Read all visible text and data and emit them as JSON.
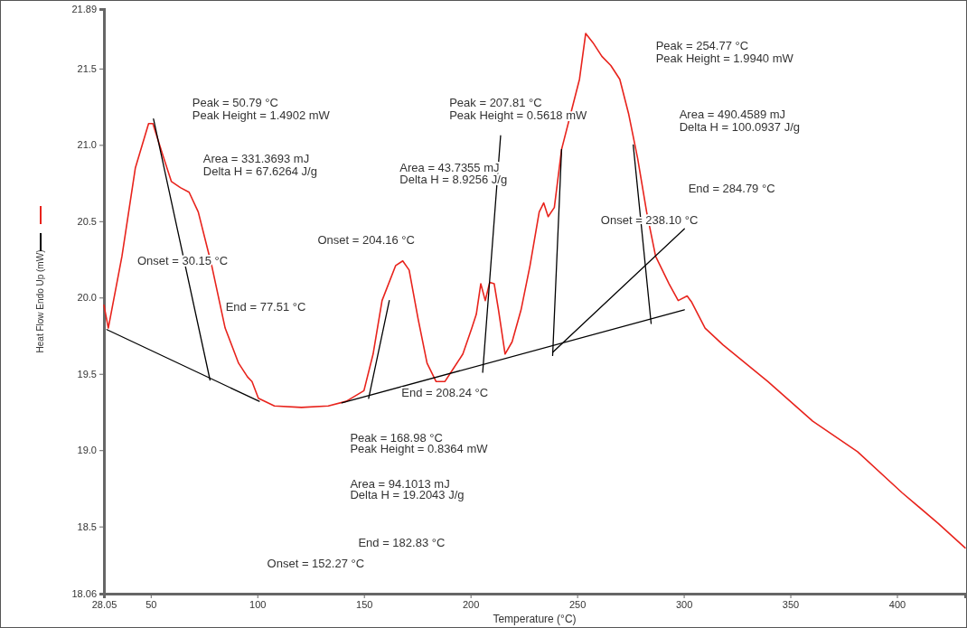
{
  "chart_data": {
    "type": "line",
    "xlabel": "Temperature (°C)",
    "ylabel": "Heat Flow Endo Up (mW)",
    "xlim": [
      28.05,
      432
    ],
    "xticks": [
      28.05,
      50,
      100,
      150,
      200,
      250,
      300,
      350,
      400
    ],
    "ylim": [
      18.06,
      21.89
    ],
    "yticks": [
      18.06,
      18.5,
      {
        "value": 19,
        "label": "19.0"
      },
      19.5,
      {
        "value": 20,
        "label": "20.0"
      },
      20.5,
      {
        "value": 21,
        "label": "21.0"
      },
      21.5,
      21.89
    ],
    "series": [
      {
        "color": "#e8231c",
        "x": [
          28.05,
          30.1,
          36.5,
          42.8,
          49,
          51,
          55.5,
          59.7,
          63.9,
          68,
          72.3,
          78.6,
          84.9,
          91.2,
          95.4,
          97.5,
          100.5,
          108,
          120.7,
          133.3,
          141.7,
          150,
          154.3,
          158.5,
          164.9,
          168.2,
          171.2,
          175.4,
          179.6,
          183.8,
          188,
          192.2,
          196.4,
          200.6,
          202.7,
          204.8,
          206.9,
          209,
          211.1,
          213.1,
          216.2,
          219.5,
          223.7,
          227.9,
          232.2,
          234.3,
          236.4,
          239.3,
          242.7,
          246.9,
          251.1,
          254,
          257.4,
          261.6,
          265.8,
          270,
          274.2,
          278.4,
          282.6,
          286.8,
          293.1,
          297.4,
          301.6,
          303.7,
          310,
          318.4,
          339.4,
          360.5,
          381.5,
          402.5,
          419.4,
          432
        ],
        "values": [
          19.95,
          19.8,
          20.27,
          20.85,
          21.14,
          21.14,
          20.94,
          20.76,
          20.72,
          20.69,
          20.56,
          20.21,
          19.8,
          19.57,
          19.48,
          19.45,
          19.34,
          19.29,
          19.28,
          19.29,
          19.32,
          19.39,
          19.63,
          19.98,
          20.21,
          20.24,
          20.18,
          19.86,
          19.57,
          19.45,
          19.45,
          19.54,
          19.63,
          19.8,
          19.89,
          20.09,
          19.98,
          20.1,
          20.09,
          19.92,
          19.63,
          19.71,
          19.92,
          20.21,
          20.56,
          20.62,
          20.53,
          20.59,
          20.97,
          21.2,
          21.43,
          21.73,
          21.67,
          21.58,
          21.52,
          21.43,
          21.2,
          20.91,
          20.56,
          20.27,
          20.09,
          19.98,
          20.01,
          19.97,
          19.8,
          19.69,
          19.45,
          19.19,
          18.99,
          18.72,
          18.52,
          18.36
        ]
      },
      {
        "color": "#000000",
        "x": [
          29.4,
          100.9
        ],
        "values": [
          19.79,
          19.32
        ]
      },
      {
        "color": "#000000",
        "x": [
          51.3,
          77.8
        ],
        "values": [
          21.17,
          19.46
        ]
      },
      {
        "color": "#000000",
        "x": [
          139.6,
          300.3
        ],
        "values": [
          19.31,
          19.92
        ]
      },
      {
        "color": "#000000",
        "x": [
          152.2,
          161.9
        ],
        "values": [
          19.34,
          19.98
        ]
      },
      {
        "color": "#000000",
        "x": [
          205.7,
          214.1
        ],
        "values": [
          19.51,
          21.06
        ]
      },
      {
        "color": "#000000",
        "x": [
          238.5,
          242.7
        ],
        "values": [
          19.62,
          20.97
        ]
      },
      {
        "color": "#000000",
        "x": [
          238.5,
          300.3
        ],
        "values": [
          19.64,
          20.45
        ]
      },
      {
        "color": "#000000",
        "x": [
          276.3,
          284.7
        ],
        "values": [
          21.0,
          19.83
        ]
      }
    ],
    "annotations": [
      "Peak = 50.79 °C",
      "Peak Height = 1.4902 mW",
      "Area = 331.3693 mJ",
      "Delta H = 67.6264 J/g",
      "Onset = 30.15 °C",
      "End = 77.51 °C",
      "Onset = 204.16 °C",
      "Peak = 207.81 °C",
      "Peak Height = 0.5618 mW",
      "Area = 43.7355 mJ",
      "Delta H = 8.9256 J/g",
      "End = 208.24 °C",
      "Peak = 168.98 °C",
      "Peak Height = 0.8364 mW",
      "Area = 94.1013 mJ",
      "Delta H = 19.2043 J/g",
      "End = 182.83 °C",
      "Onset = 152.27 °C",
      "Peak = 254.77 °C",
      "Peak Height = 1.9940 mW",
      "Area = 490.4589 mJ",
      "Delta H = 100.0937 J/g",
      "End = 284.79 °C",
      "Onset = 238.10 °C"
    ]
  }
}
